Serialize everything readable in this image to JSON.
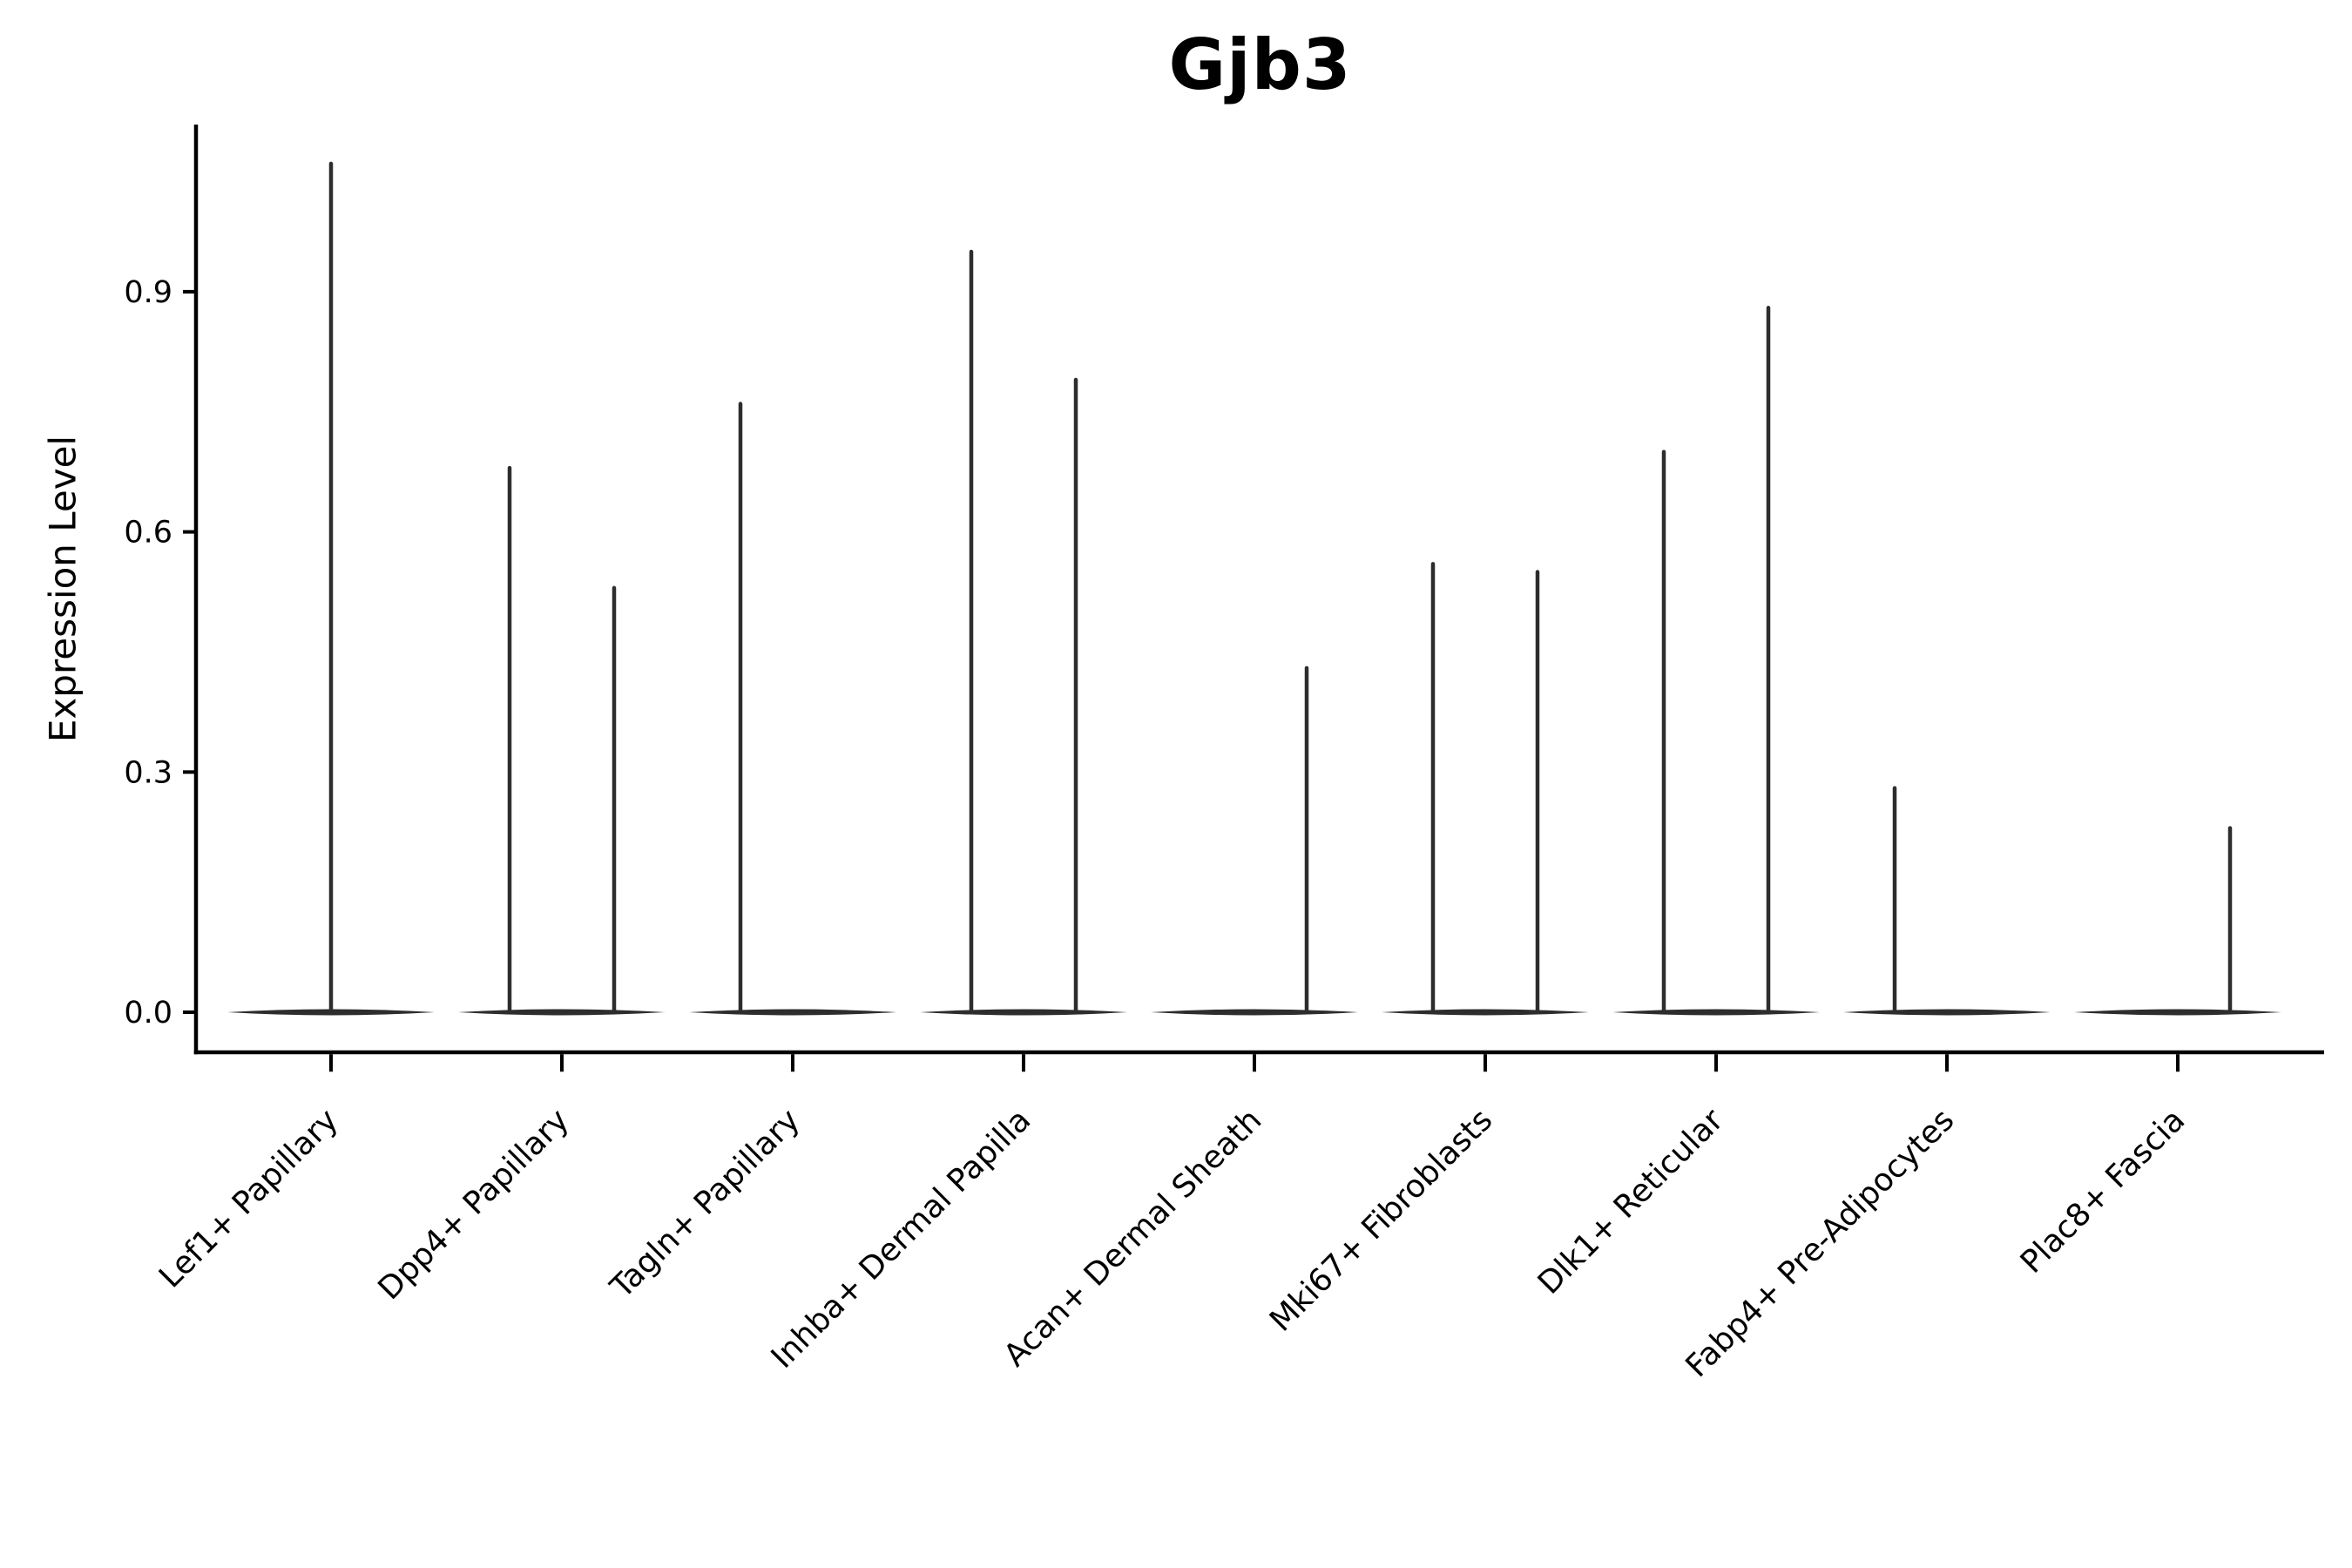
{
  "figure": {
    "background": "#ffffff"
  },
  "chart_data": {
    "type": "violin",
    "title": "Gjb3",
    "xlabel": "",
    "ylabel": "Expression Level",
    "yticks": [
      0.0,
      0.3,
      0.6,
      0.9
    ],
    "ytick_labels": [
      "0.0",
      "0.3",
      "0.6",
      "0.9"
    ],
    "ylim": [
      -0.05,
      1.13
    ],
    "grid": false,
    "legend": "none",
    "label_rotation_deg": 45,
    "categories": [
      "Lef1+ Papillary",
      "Dpp4+ Papillary",
      "Tagln+ Papillary",
      "Inhba+ Dermal Papilla",
      "Acan+ Dermal Sheath",
      "Mki67+ Fibroblasts",
      "Dlk1+ Reticular",
      "Fabp4+ Pre-Adipocytes",
      "Plac8+ Fascia"
    ],
    "series": [
      {
        "category": "Lef1+ Papillary",
        "spikes": [
          {
            "position": "center",
            "max": 1.06
          }
        ]
      },
      {
        "category": "Dpp4+ Papillary",
        "spikes": [
          {
            "position": "left",
            "max": 0.68
          },
          {
            "position": "right",
            "max": 0.53
          }
        ]
      },
      {
        "category": "Tagln+ Papillary",
        "spikes": [
          {
            "position": "left",
            "max": 0.76
          }
        ]
      },
      {
        "category": "Inhba+ Dermal Papilla",
        "spikes": [
          {
            "position": "left",
            "max": 0.95
          },
          {
            "position": "right",
            "max": 0.79
          }
        ]
      },
      {
        "category": "Acan+ Dermal Sheath",
        "spikes": [
          {
            "position": "right",
            "max": 0.43
          }
        ]
      },
      {
        "category": "Mki67+ Fibroblasts",
        "spikes": [
          {
            "position": "left",
            "max": 0.56
          },
          {
            "position": "right",
            "max": 0.55
          }
        ]
      },
      {
        "category": "Dlk1+ Reticular",
        "spikes": [
          {
            "position": "left",
            "max": 0.7
          },
          {
            "position": "right",
            "max": 0.88
          }
        ]
      },
      {
        "category": "Fabp4+ Pre-Adipocytes",
        "spikes": [
          {
            "position": "left",
            "max": 0.28
          }
        ]
      },
      {
        "category": "Plac8+ Fascia",
        "spikes": [
          {
            "position": "right",
            "max": 0.23
          }
        ]
      }
    ],
    "colors": {
      "violin": "#2d2d2d",
      "axis": "#000000",
      "text": "#000000",
      "background": "#ffffff"
    }
  }
}
